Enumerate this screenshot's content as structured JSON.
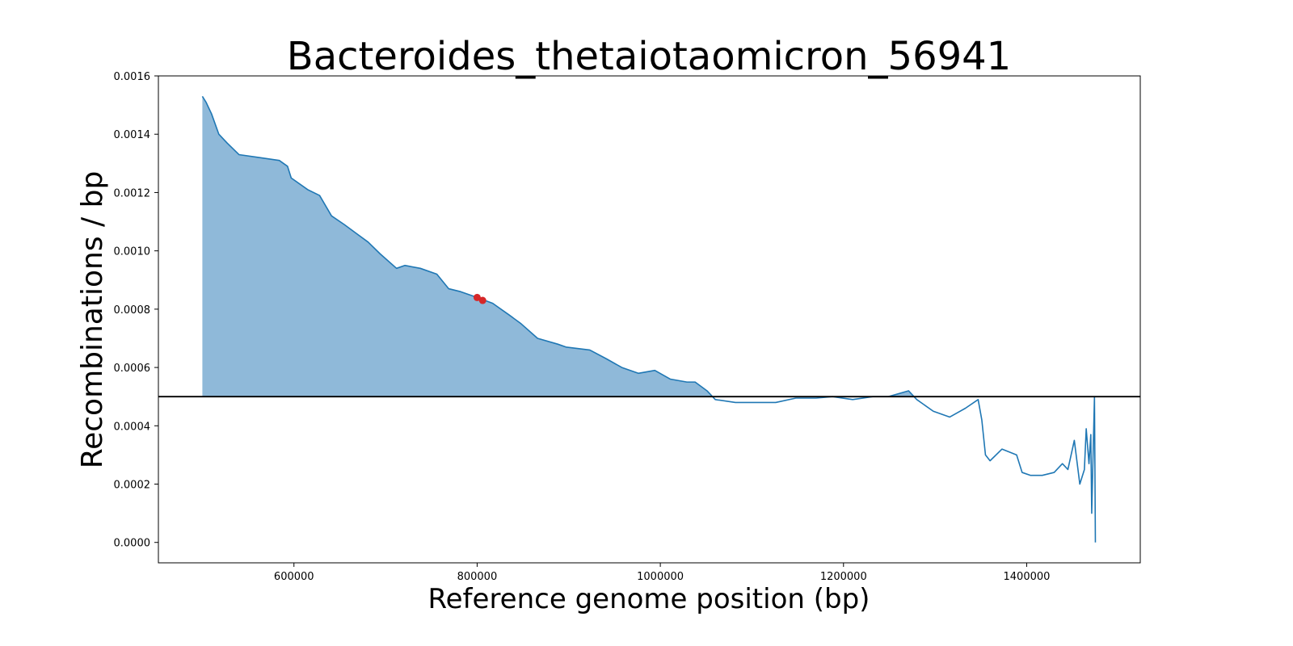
{
  "chart_data": {
    "type": "line",
    "title": "Bacteroides_thetaiotaomicron_56941",
    "xlabel": "Reference genome position (bp)",
    "ylabel": "Recombinations / bp",
    "x": [
      500000,
      504000,
      510000,
      518000,
      527000,
      540000,
      562000,
      584000,
      593000,
      597000,
      615000,
      628000,
      641000,
      655000,
      668000,
      681000,
      694000,
      712000,
      721000,
      738000,
      756000,
      769000,
      782000,
      800000,
      817000,
      835000,
      848000,
      866000,
      888000,
      897000,
      923000,
      941000,
      958000,
      976000,
      994000,
      1011000,
      1029000,
      1038000,
      1051000,
      1060000,
      1082000,
      1104000,
      1126000,
      1148000,
      1170000,
      1188000,
      1210000,
      1232000,
      1249000,
      1271000,
      1280000,
      1298000,
      1316000,
      1333000,
      1347000,
      1351000,
      1355000,
      1360000,
      1373000,
      1389000,
      1395000,
      1404000,
      1417000,
      1430000,
      1439000,
      1445000,
      1452000,
      1458000,
      1463000,
      1465000,
      1468000,
      1470000,
      1471000,
      1474000,
      1475000
    ],
    "values": [
      0.00153,
      0.00151,
      0.00147,
      0.0014,
      0.00137,
      0.00133,
      0.00132,
      0.00131,
      0.00129,
      0.00125,
      0.00121,
      0.00119,
      0.00112,
      0.00109,
      0.00106,
      0.00103,
      0.00099,
      0.00094,
      0.00095,
      0.00094,
      0.00092,
      0.00087,
      0.00086,
      0.00084,
      0.00082,
      0.00078,
      0.00075,
      0.0007,
      0.00068,
      0.00067,
      0.00066,
      0.00063,
      0.0006,
      0.00058,
      0.00059,
      0.00056,
      0.00055,
      0.00055,
      0.00052,
      0.00049,
      0.00048,
      0.00048,
      0.00048,
      0.000495,
      0.000495,
      0.0005,
      0.00049,
      0.0005,
      0.0005,
      0.00052,
      0.00049,
      0.00045,
      0.00043,
      0.00046,
      0.00049,
      0.00042,
      0.0003,
      0.00028,
      0.00032,
      0.0003,
      0.00024,
      0.00023,
      0.00023,
      0.00024,
      0.00027,
      0.00025,
      0.00035,
      0.0002,
      0.00025,
      0.00039,
      0.00027,
      0.00037,
      0.0001,
      0.0005,
      0.0
    ],
    "color": "#1f77b4",
    "fill_color": "#8fb9d9",
    "hline": 0.0005,
    "hline_color": "#000000",
    "highlight": {
      "x": [
        800000,
        806000
      ],
      "values": [
        0.00084,
        0.00083
      ],
      "color": "#d62728"
    },
    "xlim": [
      452000,
      1524000
    ],
    "ylim": [
      -7e-05,
      0.0016
    ],
    "xticks": [
      600000,
      800000,
      1000000,
      1200000,
      1400000
    ],
    "yticks": [
      {
        "value": 0,
        "label": "0.0000"
      },
      {
        "value": 0.0002,
        "label": "0.0002"
      },
      {
        "value": 0.0004,
        "label": "0.0004"
      },
      {
        "value": 0.0006,
        "label": "0.0006"
      },
      {
        "value": 0.0008,
        "label": "0.0008"
      },
      {
        "value": 0.001,
        "label": "0.0010"
      },
      {
        "value": 0.0012,
        "label": "0.0012"
      },
      {
        "value": 0.0014,
        "label": "0.0014"
      },
      {
        "value": 0.0016,
        "label": "0.0016"
      }
    ],
    "grid": false
  }
}
